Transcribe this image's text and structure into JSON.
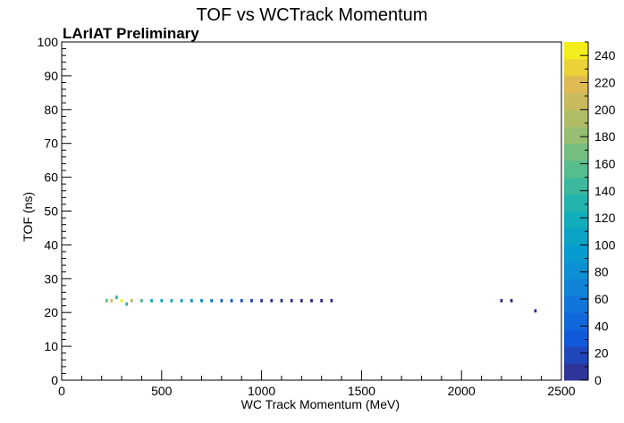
{
  "chart_data": {
    "type": "heatmap",
    "title": "TOF vs WCTrack Momentum",
    "annotation": "LArIAT Preliminary",
    "xlabel": "WC Track Momentum (MeV)",
    "ylabel": "TOF (ns)",
    "xlim": [
      0,
      2500
    ],
    "ylim": [
      0,
      100
    ],
    "zlim": [
      0,
      250
    ],
    "x_ticks": [
      "0",
      "500",
      "1000",
      "1500",
      "2000",
      "2500"
    ],
    "x_tick_values": [
      0,
      500,
      1000,
      1500,
      2000,
      2500
    ],
    "y_ticks": [
      "0",
      "10",
      "20",
      "30",
      "40",
      "50",
      "60",
      "70",
      "80",
      "90",
      "100"
    ],
    "y_tick_values": [
      0,
      10,
      20,
      30,
      40,
      50,
      60,
      70,
      80,
      90,
      100
    ],
    "z_ticks": [
      "0",
      "20",
      "40",
      "60",
      "80",
      "100",
      "120",
      "140",
      "160",
      "180",
      "200",
      "220",
      "240"
    ],
    "z_tick_values": [
      0,
      20,
      40,
      60,
      80,
      100,
      120,
      140,
      160,
      180,
      200,
      220,
      240
    ],
    "colorbar": "right",
    "bin_width": [
      12.5,
      1.0
    ],
    "cells": [
      {
        "x": 300,
        "y": 23.5,
        "z": 245
      },
      {
        "x": 250,
        "y": 23.5,
        "z": 215
      },
      {
        "x": 350,
        "y": 23.5,
        "z": 200
      },
      {
        "x": 225,
        "y": 23.5,
        "z": 160
      },
      {
        "x": 400,
        "y": 23.5,
        "z": 150
      },
      {
        "x": 275,
        "y": 24.5,
        "z": 140
      },
      {
        "x": 325,
        "y": 22.5,
        "z": 135
      },
      {
        "x": 450,
        "y": 23.5,
        "z": 120
      },
      {
        "x": 500,
        "y": 23.5,
        "z": 110
      },
      {
        "x": 550,
        "y": 23.5,
        "z": 120
      },
      {
        "x": 600,
        "y": 23.5,
        "z": 105
      },
      {
        "x": 650,
        "y": 23.5,
        "z": 90
      },
      {
        "x": 700,
        "y": 23.5,
        "z": 75
      },
      {
        "x": 750,
        "y": 23.5,
        "z": 60
      },
      {
        "x": 800,
        "y": 23.5,
        "z": 45
      },
      {
        "x": 850,
        "y": 23.5,
        "z": 35
      },
      {
        "x": 900,
        "y": 23.5,
        "z": 25
      },
      {
        "x": 950,
        "y": 23.5,
        "z": 18
      },
      {
        "x": 1000,
        "y": 23.5,
        "z": 12
      },
      {
        "x": 1050,
        "y": 23.5,
        "z": 8
      },
      {
        "x": 1100,
        "y": 23.5,
        "z": 6
      },
      {
        "x": 1150,
        "y": 23.5,
        "z": 4
      },
      {
        "x": 1200,
        "y": 23.5,
        "z": 3
      },
      {
        "x": 1250,
        "y": 23.5,
        "z": 2
      },
      {
        "x": 1300,
        "y": 23.5,
        "z": 2
      },
      {
        "x": 1350,
        "y": 23.5,
        "z": 1
      },
      {
        "x": 2200,
        "y": 23.5,
        "z": 1
      },
      {
        "x": 2250,
        "y": 23.5,
        "z": 1
      },
      {
        "x": 2370,
        "y": 20.5,
        "z": 1
      }
    ]
  }
}
